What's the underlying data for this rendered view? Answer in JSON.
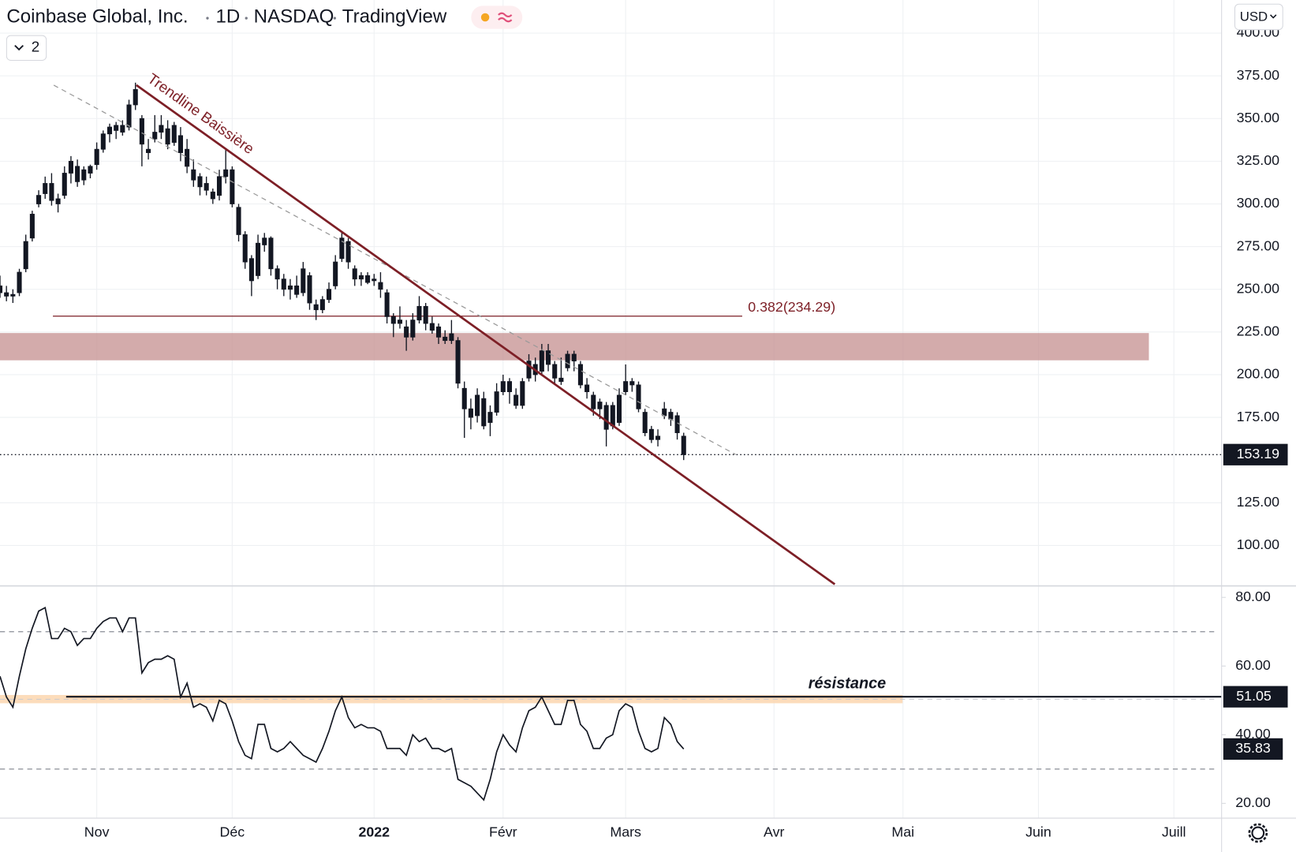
{
  "header": {
    "symbol": "Coinbase Global, Inc.",
    "interval": "1D",
    "exchange": "NASDAQ",
    "source": "TradingView",
    "layout_count": "2",
    "currency": "USD"
  },
  "chart_data": [
    {
      "type": "candlestick",
      "color": "#131722",
      "grid": true,
      "ohlc": [
        [
          252,
          258,
          245,
          248
        ],
        [
          248,
          252,
          243,
          246
        ],
        [
          246,
          250,
          242,
          247
        ],
        [
          248,
          262,
          246,
          260
        ],
        [
          262,
          282,
          260,
          278
        ],
        [
          280,
          296,
          278,
          294
        ],
        [
          300,
          308,
          298,
          305
        ],
        [
          306,
          316,
          303,
          312
        ],
        [
          312,
          318,
          299,
          302
        ],
        [
          303,
          306,
          295,
          300
        ],
        [
          305,
          322,
          303,
          318
        ],
        [
          318,
          328,
          312,
          325
        ],
        [
          322,
          326,
          310,
          313
        ],
        [
          314,
          322,
          311,
          320
        ],
        [
          318,
          323,
          315,
          322
        ],
        [
          323,
          336,
          320,
          332
        ],
        [
          332,
          343,
          330,
          341
        ],
        [
          341,
          347,
          336,
          345
        ],
        [
          343,
          348,
          338,
          346
        ],
        [
          346,
          349,
          340,
          342
        ],
        [
          345,
          361,
          343,
          358
        ],
        [
          358,
          371,
          355,
          367
        ],
        [
          350,
          352,
          322,
          335
        ],
        [
          332,
          338,
          326,
          330
        ],
        [
          338,
          352,
          336,
          342
        ],
        [
          342,
          352,
          338,
          346
        ],
        [
          344,
          349,
          332,
          335
        ],
        [
          336,
          348,
          334,
          346
        ],
        [
          340,
          345,
          325,
          330
        ],
        [
          332,
          338,
          318,
          322
        ],
        [
          320,
          326,
          310,
          314
        ],
        [
          316,
          318,
          305,
          310
        ],
        [
          312,
          316,
          305,
          308
        ],
        [
          307,
          309,
          300,
          303
        ],
        [
          305,
          320,
          302,
          316
        ],
        [
          316,
          332,
          312,
          320
        ],
        [
          320,
          322,
          298,
          300
        ],
        [
          298,
          300,
          278,
          282
        ],
        [
          282,
          284,
          262,
          266
        ],
        [
          268,
          270,
          246,
          255
        ],
        [
          258,
          282,
          256,
          277
        ],
        [
          276,
          283,
          272,
          280
        ],
        [
          280,
          281,
          258,
          262
        ],
        [
          262,
          264,
          250,
          256
        ],
        [
          256,
          259,
          246,
          250
        ],
        [
          250,
          256,
          244,
          252
        ],
        [
          252,
          258,
          245,
          247
        ],
        [
          248,
          266,
          246,
          262
        ],
        [
          258,
          260,
          238,
          242
        ],
        [
          241,
          244,
          232,
          238
        ],
        [
          238,
          246,
          236,
          244
        ],
        [
          244,
          254,
          242,
          250
        ],
        [
          252,
          270,
          250,
          266
        ],
        [
          268,
          284,
          266,
          280
        ],
        [
          278,
          280,
          262,
          266
        ],
        [
          262,
          264,
          252,
          256
        ],
        [
          256,
          260,
          252,
          258
        ],
        [
          258,
          260,
          253,
          254
        ],
        [
          256,
          259,
          252,
          255
        ],
        [
          254,
          260,
          245,
          250
        ],
        [
          248,
          250,
          230,
          234
        ],
        [
          234,
          236,
          222,
          230
        ],
        [
          230,
          240,
          227,
          232
        ],
        [
          228,
          232,
          214,
          222
        ],
        [
          222,
          236,
          220,
          232
        ],
        [
          232,
          246,
          230,
          240
        ],
        [
          240,
          242,
          226,
          230
        ],
        [
          230,
          234,
          224,
          226
        ],
        [
          228,
          230,
          218,
          222
        ],
        [
          222,
          226,
          218,
          220
        ],
        [
          220,
          232,
          218,
          224
        ],
        [
          220,
          222,
          192,
          195
        ],
        [
          192,
          196,
          163,
          180
        ],
        [
          180,
          186,
          168,
          175
        ],
        [
          176,
          192,
          172,
          188
        ],
        [
          186,
          190,
          168,
          170
        ],
        [
          172,
          182,
          164,
          178
        ],
        [
          178,
          195,
          176,
          190
        ],
        [
          190,
          200,
          188,
          196
        ],
        [
          196,
          198,
          183,
          190
        ],
        [
          188,
          192,
          180,
          182
        ],
        [
          182,
          198,
          180,
          196
        ],
        [
          198,
          212,
          196,
          208
        ],
        [
          206,
          210,
          196,
          200
        ],
        [
          202,
          218,
          200,
          214
        ],
        [
          214,
          218,
          202,
          206
        ],
        [
          206,
          208,
          195,
          198
        ],
        [
          198,
          210,
          194,
          196
        ],
        [
          204,
          214,
          202,
          212
        ],
        [
          212,
          214,
          202,
          208
        ],
        [
          206,
          208,
          192,
          194
        ],
        [
          194,
          198,
          186,
          190
        ],
        [
          188,
          190,
          176,
          180
        ],
        [
          180,
          186,
          174,
          184
        ],
        [
          182,
          184,
          158,
          168
        ],
        [
          170,
          184,
          168,
          182
        ],
        [
          172,
          192,
          170,
          188
        ],
        [
          190,
          206,
          188,
          196
        ],
        [
          196,
          198,
          190,
          194
        ],
        [
          194,
          196,
          178,
          180
        ],
        [
          178,
          180,
          164,
          166
        ],
        [
          168,
          170,
          160,
          162
        ],
        [
          162,
          168,
          158,
          164
        ],
        [
          176,
          184,
          174,
          180
        ],
        [
          178,
          180,
          170,
          174
        ],
        [
          176,
          178,
          162,
          166
        ],
        [
          164,
          166,
          150,
          153.19
        ]
      ],
      "xlim": [
        0,
        189.4
      ],
      "xticks": [
        {
          "value": 15,
          "label": "Nov"
        },
        {
          "value": 36,
          "label": "Déc"
        },
        {
          "value": 58,
          "label": "2022"
        },
        {
          "value": 78,
          "label": "Févr"
        },
        {
          "value": 97,
          "label": "Mars"
        },
        {
          "value": 120,
          "label": "Avr"
        },
        {
          "value": 140,
          "label": "Mai"
        },
        {
          "value": 161,
          "label": "Juin"
        },
        {
          "value": 182,
          "label": "Juill"
        }
      ],
      "ylim": [
        76.8,
        419.4
      ],
      "yticks": [
        {
          "value": 100,
          "label": "100.00"
        },
        {
          "value": 125,
          "label": "125.00"
        },
        {
          "value": 175,
          "label": "175.00"
        },
        {
          "value": 200,
          "label": "200.00"
        },
        {
          "value": 225,
          "label": "225.00"
        },
        {
          "value": 250,
          "label": "250.00"
        },
        {
          "value": 275,
          "label": "275.00"
        },
        {
          "value": 300,
          "label": "300.00"
        },
        {
          "value": 325,
          "label": "325.00"
        },
        {
          "value": 350,
          "label": "350.00"
        },
        {
          "value": 375,
          "label": "375.00"
        },
        {
          "value": 400,
          "label": "400.00"
        }
      ],
      "trendline_label": "Trendline Baissière",
      "fib_level": {
        "value": 234.29,
        "label": "0.382(234.29)"
      }
    },
    {
      "type": "line",
      "color": "#131722",
      "values": [
        57,
        51,
        48,
        57,
        65,
        71,
        76,
        77,
        68,
        68,
        71,
        70,
        66,
        68,
        68,
        71,
        73,
        74,
        74,
        70,
        74,
        74,
        58,
        61,
        62,
        62,
        63,
        62,
        51,
        55,
        48,
        49,
        48,
        44,
        50,
        49,
        44,
        38,
        34,
        33,
        43,
        43,
        36,
        35,
        36,
        38,
        36,
        34,
        33,
        32,
        36,
        41,
        47,
        51,
        45,
        42,
        43,
        42,
        42,
        41,
        36,
        36,
        36,
        34,
        40,
        38,
        39,
        36,
        36,
        35,
        36,
        27,
        26,
        25,
        23,
        21,
        27,
        35,
        40,
        37,
        35,
        42,
        47,
        48,
        51,
        47,
        43,
        43,
        50,
        50,
        43,
        41,
        36,
        36,
        39,
        40,
        47,
        49,
        48,
        41,
        36,
        35,
        36,
        45,
        43,
        38,
        35.83
      ],
      "ylim": [
        15.7,
        83.1
      ],
      "yticks": [
        {
          "value": 20,
          "label": "20.00"
        },
        {
          "value": 40,
          "label": "40.00"
        },
        {
          "value": 60,
          "label": "60.00"
        },
        {
          "value": 80,
          "label": "80.00"
        }
      ],
      "hlines": [
        70,
        30
      ],
      "resistance": 51.05,
      "resistance_label": "résistance"
    }
  ]
}
